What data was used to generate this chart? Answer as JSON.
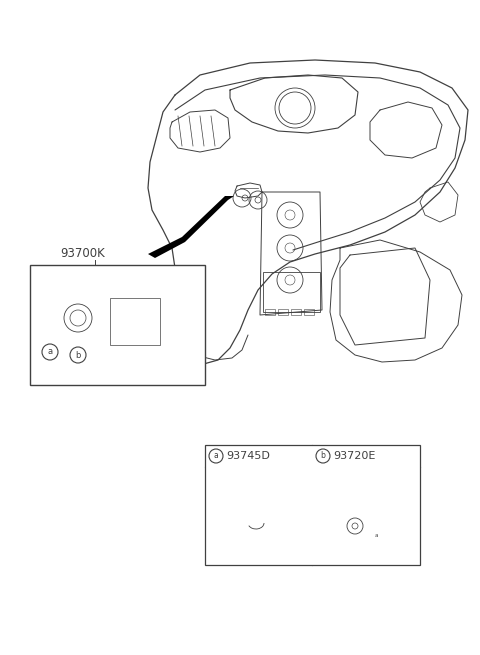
{
  "bg_color": "#ffffff",
  "line_color": "#404040",
  "figsize": [
    4.8,
    6.55
  ],
  "dpi": 100,
  "label_93700K": "93700K",
  "label_a": "a",
  "label_b": "b",
  "label_93745D": "93745D",
  "label_93720E": "93720E"
}
